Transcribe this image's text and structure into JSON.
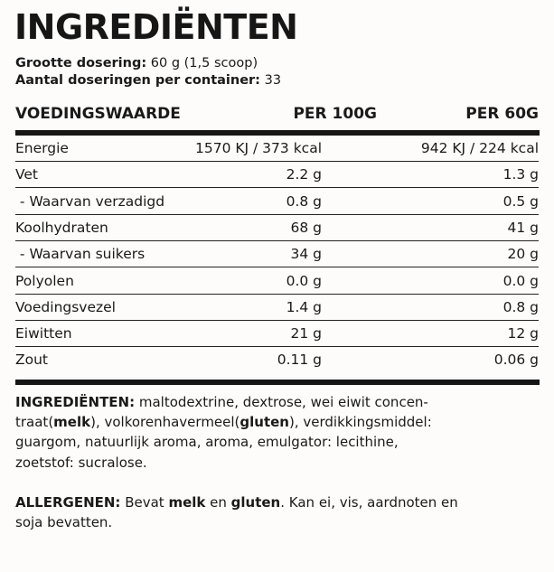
{
  "title": "INGREDIËNTEN",
  "serving": {
    "size_label": "Grootte dosering:",
    "size_value": " 60 g (1,5 scoop)",
    "count_label": "Aantal doseringen per container:",
    "count_value": " 33"
  },
  "table": {
    "headers": [
      "VOEDINGSWAARDE",
      "PER 100G",
      "PER 60G"
    ],
    "rows": [
      {
        "name": "Energie",
        "per100": "1570 KJ / 373 kcal",
        "per60": "942 KJ / 224 kcal"
      },
      {
        "name": "Vet",
        "per100": "2.2 g",
        "per60": "1.3 g"
      },
      {
        "name": " - Waarvan verzadigd",
        "per100": "0.8 g",
        "per60": "0.5 g"
      },
      {
        "name": "Koolhydraten",
        "per100": "68 g",
        "per60": "41 g"
      },
      {
        "name": " - Waarvan suikers",
        "per100": "34 g",
        "per60": "20 g"
      },
      {
        "name": "Polyolen",
        "per100": "0.0 g",
        "per60": "0.0 g"
      },
      {
        "name": "Voedingsvezel",
        "per100": "1.4 g",
        "per60": "0.8 g"
      },
      {
        "name": "Eiwitten",
        "per100": "21 g",
        "per60": "12 g"
      },
      {
        "name": "Zout",
        "per100": "0.11 g",
        "per60": "0.06 g"
      }
    ]
  },
  "ingredients": {
    "l1a": "INGREDIËNTEN:",
    "l1b": " maltodextrine, dextrose, wei eiwit concen-",
    "l2a": "traat(",
    "l2b": "melk",
    "l2c": "), volkorenhavermeel(",
    "l2d": "gluten",
    "l2e": "), verdikkingsmiddel:",
    "l3": "guargom, natuurlijk aroma, aroma, emulgator: lecithine,",
    "l4": "zoetstof: sucralose."
  },
  "allergens": {
    "l1a": "ALLERGENEN:",
    "l1b": " Bevat ",
    "l1c": "melk",
    "l1d": " en ",
    "l1e": "gluten",
    "l1f": ". Kan ei, vis, aardnoten en",
    "l2": "soja bevatten."
  }
}
